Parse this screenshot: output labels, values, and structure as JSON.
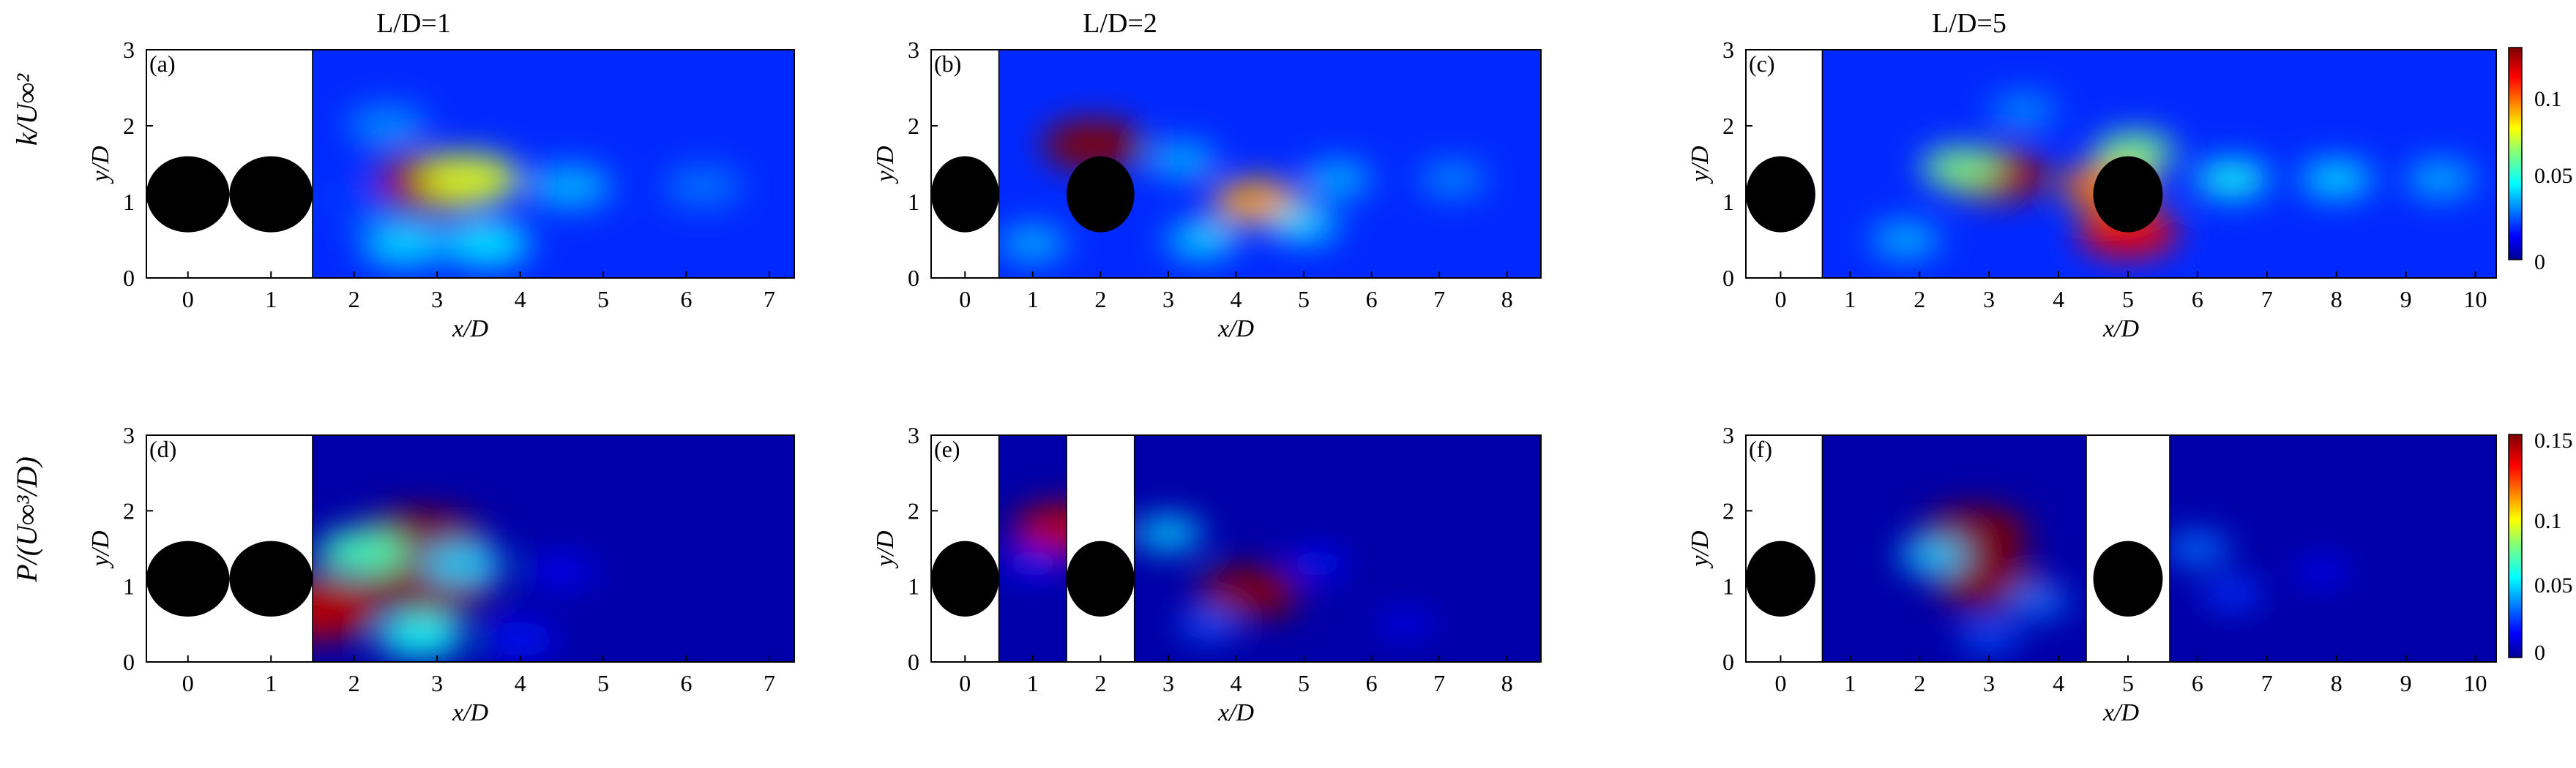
{
  "figure": {
    "column_titles": [
      "L/D=1",
      "L/D=2",
      "L/D=5"
    ],
    "row_labels": [
      "k/U∞²",
      "P/(U∞³/D)"
    ],
    "colorbar_top_ticks": [
      "0.1",
      "0.05",
      "0"
    ],
    "colorbar_bottom_ticks": [
      "0.15",
      "0.1",
      "0.05",
      "0"
    ]
  },
  "chart_data": [
    {
      "type": "heatmap",
      "panel": "(a)",
      "row": 0,
      "col": 0,
      "title": "L/D=1",
      "xlabel": "x/D",
      "ylabel": "y/D",
      "xlim": [
        -0.5,
        7.3
      ],
      "ylim": [
        0,
        3
      ],
      "xticks": [
        0,
        1,
        2,
        3,
        4,
        5,
        6,
        7
      ],
      "yticks": [
        0,
        1,
        2,
        3
      ],
      "cylinders": [
        {
          "x": 0,
          "y": 1.1
        },
        {
          "x": 1,
          "y": 1.1
        }
      ],
      "masked_x_ranges": [
        [
          -0.5,
          1.5
        ]
      ],
      "color_max": 0.12,
      "background_value": 0.018,
      "hotspots": [
        {
          "x": 3.0,
          "y": 1.25,
          "value": 0.115
        },
        {
          "x": 3.4,
          "y": 1.3,
          "value": 0.07
        },
        {
          "x": 4.6,
          "y": 1.2,
          "value": 0.035
        },
        {
          "x": 6.2,
          "y": 1.2,
          "value": 0.027
        },
        {
          "x": 2.6,
          "y": 0.45,
          "value": 0.04
        },
        {
          "x": 3.6,
          "y": 0.45,
          "value": 0.042
        },
        {
          "x": 2.4,
          "y": 2.0,
          "value": 0.03
        },
        {
          "x": 2.0,
          "y": 1.05,
          "value": 0.02
        }
      ]
    },
    {
      "type": "heatmap",
      "panel": "(b)",
      "row": 0,
      "col": 1,
      "title": "L/D=2",
      "xlabel": "x/D",
      "ylabel": "y/D",
      "xlim": [
        -0.5,
        8.5
      ],
      "ylim": [
        0,
        3
      ],
      "xticks": [
        0,
        1,
        2,
        3,
        4,
        5,
        6,
        7,
        8
      ],
      "yticks": [
        0,
        1,
        2,
        3
      ],
      "cylinders": [
        {
          "x": 0,
          "y": 1.1
        },
        {
          "x": 2,
          "y": 1.1
        }
      ],
      "masked_x_ranges": [
        [
          -0.5,
          0.5
        ]
      ],
      "color_max": 0.12,
      "background_value": 0.018,
      "hotspots": [
        {
          "x": 1.9,
          "y": 1.75,
          "value": 0.12
        },
        {
          "x": 4.3,
          "y": 1.0,
          "value": 0.085
        },
        {
          "x": 3.5,
          "y": 0.5,
          "value": 0.04
        },
        {
          "x": 5.0,
          "y": 0.7,
          "value": 0.04
        },
        {
          "x": 3.2,
          "y": 1.55,
          "value": 0.035
        },
        {
          "x": 5.5,
          "y": 1.3,
          "value": 0.035
        },
        {
          "x": 7.2,
          "y": 1.3,
          "value": 0.03
        },
        {
          "x": 1.0,
          "y": 0.45,
          "value": 0.035
        }
      ]
    },
    {
      "type": "heatmap",
      "panel": "(c)",
      "row": 0,
      "col": 2,
      "title": "L/D=5",
      "xlabel": "x/D",
      "ylabel": "y/D",
      "xlim": [
        -0.5,
        10.3
      ],
      "ylim": [
        0,
        3
      ],
      "xticks": [
        0,
        1,
        2,
        3,
        4,
        5,
        6,
        7,
        8,
        9,
        10
      ],
      "yticks": [
        0,
        1,
        2,
        3
      ],
      "cylinders": [
        {
          "x": 0,
          "y": 1.1
        },
        {
          "x": 5,
          "y": 1.1
        }
      ],
      "masked_x_ranges": [
        [
          -0.5,
          0.6
        ]
      ],
      "color_max": 0.12,
      "background_value": 0.018,
      "hotspots": [
        {
          "x": 3.1,
          "y": 1.35,
          "value": 0.115
        },
        {
          "x": 2.6,
          "y": 1.45,
          "value": 0.06
        },
        {
          "x": 4.7,
          "y": 1.2,
          "value": 0.09
        },
        {
          "x": 5.0,
          "y": 0.6,
          "value": 0.105
        },
        {
          "x": 5.1,
          "y": 1.65,
          "value": 0.06
        },
        {
          "x": 6.5,
          "y": 1.3,
          "value": 0.045
        },
        {
          "x": 8.0,
          "y": 1.3,
          "value": 0.04
        },
        {
          "x": 9.5,
          "y": 1.3,
          "value": 0.035
        },
        {
          "x": 1.8,
          "y": 0.5,
          "value": 0.035
        },
        {
          "x": 3.5,
          "y": 2.2,
          "value": 0.03
        }
      ]
    },
    {
      "type": "heatmap",
      "panel": "(d)",
      "row": 1,
      "col": 0,
      "title": "",
      "xlabel": "x/D",
      "ylabel": "y/D",
      "xlim": [
        -0.5,
        7.3
      ],
      "ylim": [
        0,
        3
      ],
      "xticks": [
        0,
        1,
        2,
        3,
        4,
        5,
        6,
        7
      ],
      "yticks": [
        0,
        1,
        2,
        3
      ],
      "cylinders": [
        {
          "x": 0,
          "y": 1.1
        },
        {
          "x": 1,
          "y": 1.1
        }
      ],
      "masked_x_ranges": [
        [
          -0.5,
          1.5
        ]
      ],
      "color_max": 0.16,
      "background_value": 0.004,
      "hotspots": [
        {
          "x": 2.8,
          "y": 1.6,
          "value": 0.16
        },
        {
          "x": 2.9,
          "y": 1.05,
          "value": 0.16
        },
        {
          "x": 2.1,
          "y": 1.45,
          "value": 0.07
        },
        {
          "x": 3.3,
          "y": 1.3,
          "value": 0.05
        },
        {
          "x": 2.8,
          "y": 0.35,
          "value": 0.06
        },
        {
          "x": 1.55,
          "y": 0.7,
          "value": 0.15
        },
        {
          "x": 4.0,
          "y": 0.3,
          "value": 0.02
        },
        {
          "x": 4.5,
          "y": 1.2,
          "value": 0.015
        }
      ]
    },
    {
      "type": "heatmap",
      "panel": "(e)",
      "row": 1,
      "col": 1,
      "title": "",
      "xlabel": "x/D",
      "ylabel": "y/D",
      "xlim": [
        -0.5,
        8.5
      ],
      "ylim": [
        0,
        3
      ],
      "xticks": [
        0,
        1,
        2,
        3,
        4,
        5,
        6,
        7,
        8
      ],
      "yticks": [
        0,
        1,
        2,
        3
      ],
      "cylinders": [
        {
          "x": 0,
          "y": 1.1
        },
        {
          "x": 2,
          "y": 1.1
        }
      ],
      "masked_x_ranges": [
        [
          -0.5,
          0.5
        ],
        [
          1.5,
          2.5
        ]
      ],
      "color_max": 0.16,
      "background_value": 0.004,
      "hotspots": [
        {
          "x": 4.2,
          "y": 0.92,
          "value": 0.16
        },
        {
          "x": 1.45,
          "y": 1.75,
          "value": 0.15
        },
        {
          "x": 3.0,
          "y": 1.7,
          "value": 0.05
        },
        {
          "x": 3.6,
          "y": 0.5,
          "value": 0.03
        },
        {
          "x": 1.0,
          "y": 1.3,
          "value": 0.02
        },
        {
          "x": 5.2,
          "y": 1.3,
          "value": 0.02
        },
        {
          "x": 6.5,
          "y": 0.5,
          "value": 0.015
        }
      ]
    },
    {
      "type": "heatmap",
      "panel": "(f)",
      "row": 1,
      "col": 2,
      "title": "",
      "xlabel": "x/D",
      "ylabel": "y/D",
      "xlim": [
        -0.5,
        10.3
      ],
      "ylim": [
        0,
        3
      ],
      "xticks": [
        0,
        1,
        2,
        3,
        4,
        5,
        6,
        7,
        8,
        9,
        10
      ],
      "yticks": [
        0,
        1,
        2,
        3
      ],
      "cylinders": [
        {
          "x": 0,
          "y": 1.1
        },
        {
          "x": 5,
          "y": 1.1
        }
      ],
      "masked_x_ranges": [
        [
          -0.5,
          0.6
        ],
        [
          4.4,
          5.6
        ]
      ],
      "color_max": 0.16,
      "background_value": 0.004,
      "hotspots": [
        {
          "x": 2.8,
          "y": 1.7,
          "value": 0.16
        },
        {
          "x": 3.0,
          "y": 1.05,
          "value": 0.16
        },
        {
          "x": 2.2,
          "y": 1.4,
          "value": 0.05
        },
        {
          "x": 3.7,
          "y": 0.8,
          "value": 0.035
        },
        {
          "x": 3.0,
          "y": 0.35,
          "value": 0.03
        },
        {
          "x": 6.0,
          "y": 1.5,
          "value": 0.035
        },
        {
          "x": 6.5,
          "y": 0.9,
          "value": 0.025
        },
        {
          "x": 7.8,
          "y": 1.2,
          "value": 0.015
        }
      ]
    }
  ]
}
